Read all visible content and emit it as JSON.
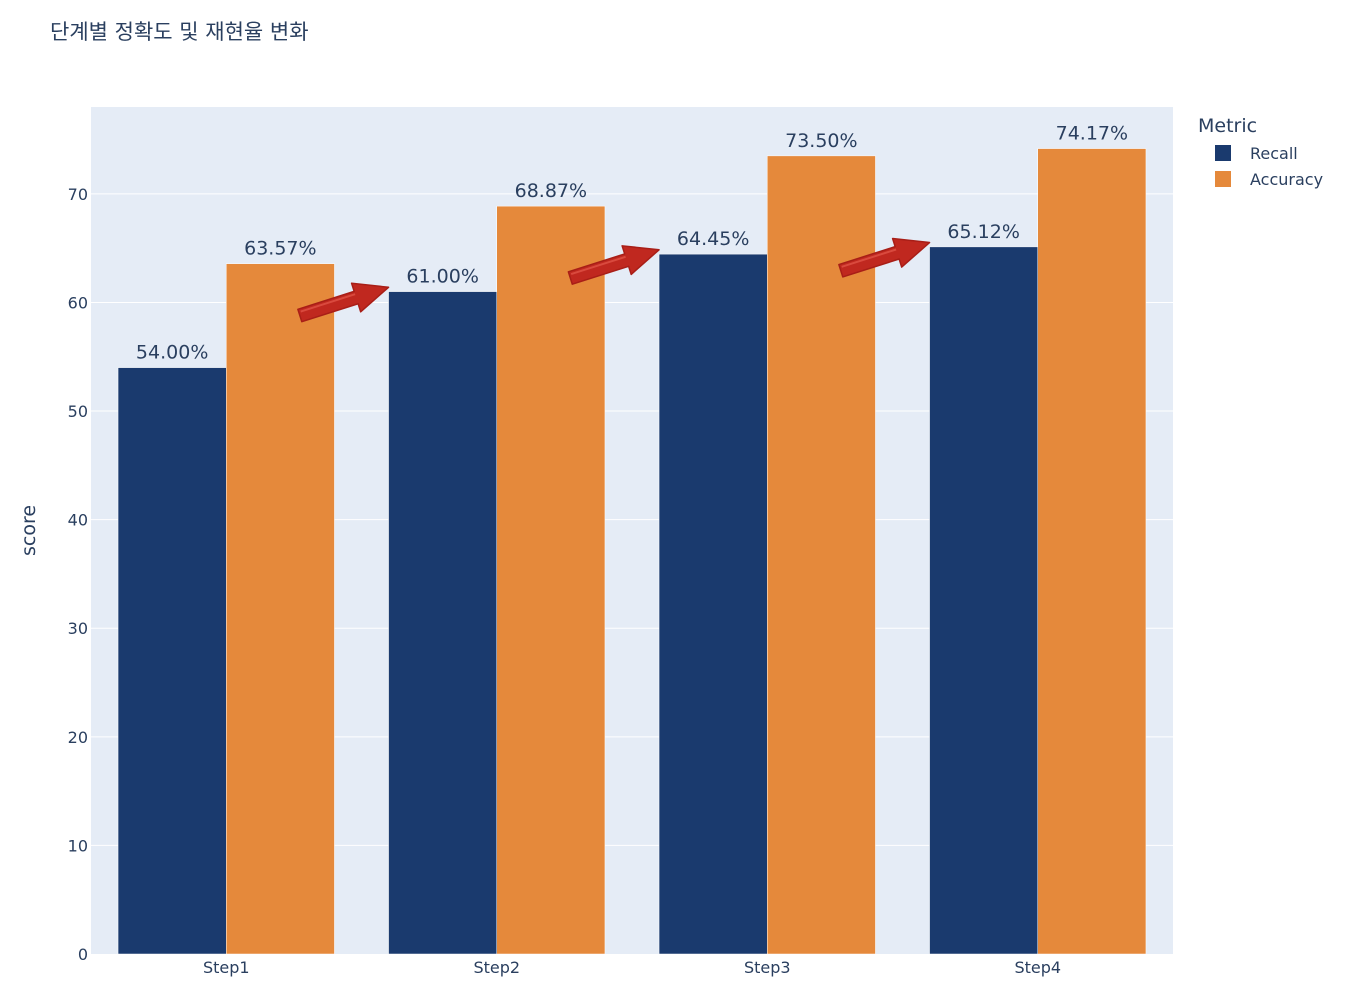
{
  "chart_data": {
    "type": "bar",
    "title": "단계별 정확도 및 재현율 변화",
    "xlabel": "",
    "ylabel": "score",
    "categories": [
      "Step1",
      "Step2",
      "Step3",
      "Step4"
    ],
    "series": [
      {
        "name": "Recall",
        "values": [
          54.0,
          61.0,
          64.45,
          65.12
        ],
        "labels": [
          "54.00%",
          "61.00%",
          "64.45%",
          "65.12%"
        ],
        "color": "#1a3a6e"
      },
      {
        "name": "Accuracy",
        "values": [
          63.57,
          68.87,
          73.5,
          74.17
        ],
        "labels": [
          "63.57%",
          "68.87%",
          "73.50%",
          "74.17%"
        ],
        "color": "#e5893b"
      }
    ],
    "ylim": [
      0,
      78
    ],
    "yticks": [
      0,
      10,
      20,
      30,
      40,
      50,
      60,
      70
    ],
    "grid": true,
    "legend": {
      "title": "Metric",
      "placement": "right"
    },
    "annotations": {
      "type": "arrows",
      "color": "#c0281f",
      "count": 3
    }
  }
}
